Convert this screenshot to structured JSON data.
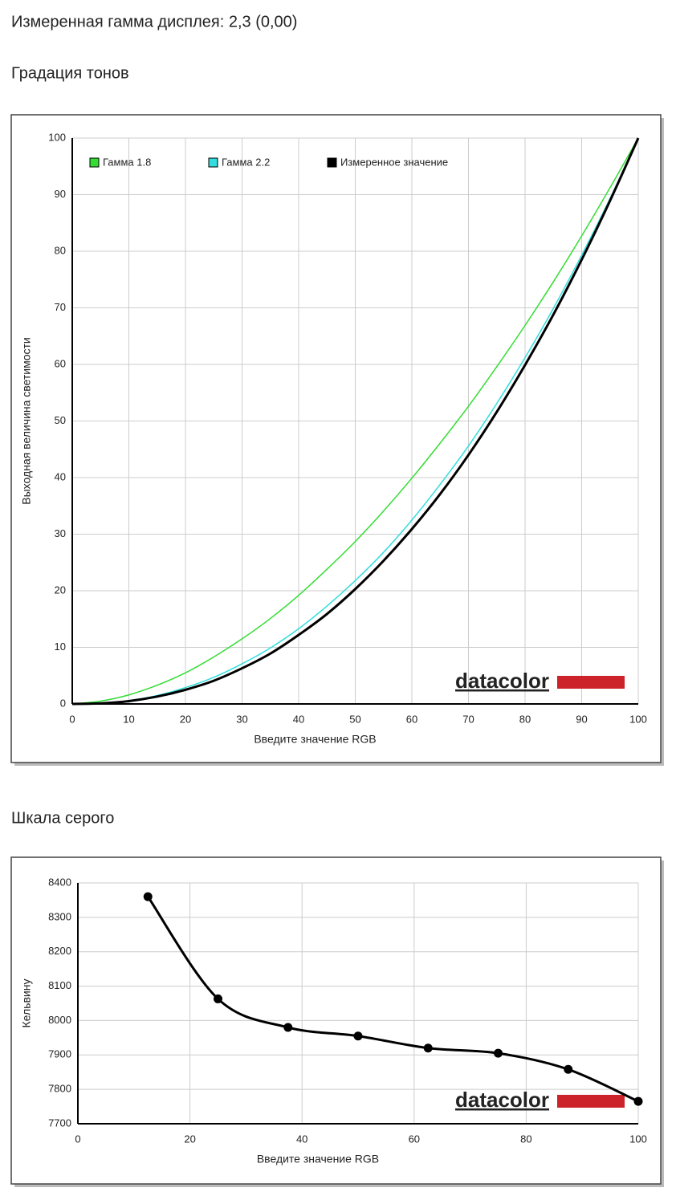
{
  "heading": "Измеренная гамма дисплея: 2,3 (0,00)",
  "chart_data": [
    {
      "type": "line",
      "title": "Градация тонов",
      "x_label": "Введите значение RGB",
      "y_label": "Выходная величина светимости",
      "watermark": "datacolor",
      "x": [
        0,
        5,
        10,
        15,
        20,
        25,
        30,
        35,
        40,
        45,
        50,
        55,
        60,
        65,
        70,
        75,
        80,
        85,
        90,
        95,
        100
      ],
      "series": [
        {
          "name": "Гамма 1.8",
          "color": "#33dd33",
          "values": [
            0,
            0.5,
            1.6,
            3.3,
            5.5,
            8.3,
            11.5,
            15.1,
            19.2,
            23.8,
            28.7,
            34.1,
            39.9,
            46.1,
            52.6,
            59.6,
            66.9,
            74.6,
            82.7,
            91.2,
            100
          ]
        },
        {
          "name": "Гамма 2.2",
          "color": "#33dddd",
          "values": [
            0,
            0.1,
            0.6,
            1.5,
            2.9,
            4.7,
            7.1,
            9.9,
            13.3,
            17.3,
            21.8,
            26.8,
            32.5,
            38.8,
            45.6,
            53.1,
            61.2,
            69.9,
            79.3,
            89.3,
            100
          ]
        },
        {
          "name": "Измеренное значение",
          "color": "#000000",
          "values": [
            0,
            0.1,
            0.5,
            1.3,
            2.5,
            4.1,
            6.3,
            8.9,
            12.2,
            15.9,
            20.3,
            25.3,
            30.9,
            37.1,
            44.0,
            51.6,
            59.9,
            68.8,
            78.5,
            88.9,
            100
          ]
        }
      ],
      "xlim": [
        0,
        100
      ],
      "xticks": [
        0,
        10,
        20,
        30,
        40,
        50,
        60,
        70,
        80,
        90,
        100
      ],
      "ylim": [
        0,
        100
      ],
      "yticks": [
        0,
        10,
        20,
        30,
        40,
        50,
        60,
        70,
        80,
        90,
        100
      ],
      "grid": true,
      "legend": "upper left"
    },
    {
      "type": "line",
      "title": "Шкала серого",
      "x_label": "Введите значение RGB",
      "y_label": "Кельвину",
      "watermark": "datacolor",
      "x": [
        12.5,
        25,
        37.5,
        50,
        62.5,
        75,
        87.5,
        100
      ],
      "values": [
        8360,
        8063,
        7980,
        7955,
        7920,
        7905,
        7858,
        7765
      ],
      "color": "#000000",
      "markers": true,
      "xlim": [
        0,
        100
      ],
      "xticks": [
        0,
        20,
        40,
        60,
        80,
        100
      ],
      "ylim": [
        7700,
        8400
      ],
      "yticks": [
        7700,
        7800,
        7900,
        8000,
        8100,
        8200,
        8300,
        8400
      ],
      "grid": true
    }
  ]
}
